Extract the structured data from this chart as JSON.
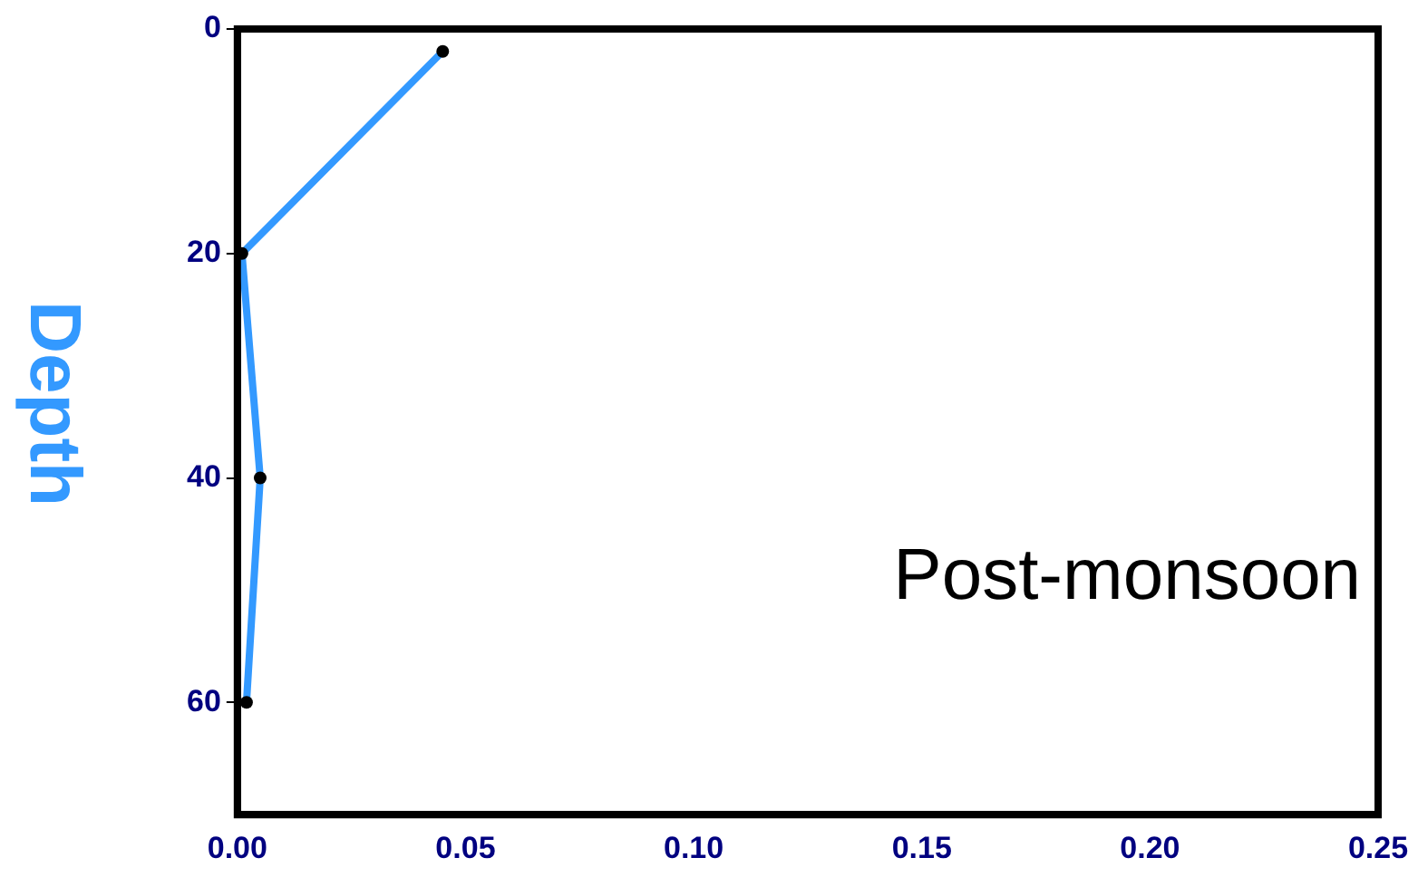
{
  "chart_data": {
    "type": "line",
    "ylabel": "Depth",
    "annotations": [
      "Post-monsoon"
    ],
    "xlim": [
      0,
      0.25
    ],
    "xticks": [
      {
        "value": 0,
        "label": "0.00"
      },
      {
        "value": 0.05,
        "label": "0.05"
      },
      {
        "value": 0.1,
        "label": "0.10"
      },
      {
        "value": 0.15,
        "label": "0.15"
      },
      {
        "value": 0.2,
        "label": "0.20"
      },
      {
        "value": 0.25,
        "label": "0.25"
      }
    ],
    "ylim": [
      70,
      0
    ],
    "yticks": [
      0,
      20,
      40,
      60
    ],
    "grid": false,
    "legend": false,
    "marker": "circle",
    "line_style": "solid",
    "series": [
      {
        "color": "#3399ff",
        "x": [
          0.045,
          0.001,
          0.005,
          0.002
        ],
        "values": [
          2,
          20,
          40,
          60
        ]
      }
    ]
  }
}
